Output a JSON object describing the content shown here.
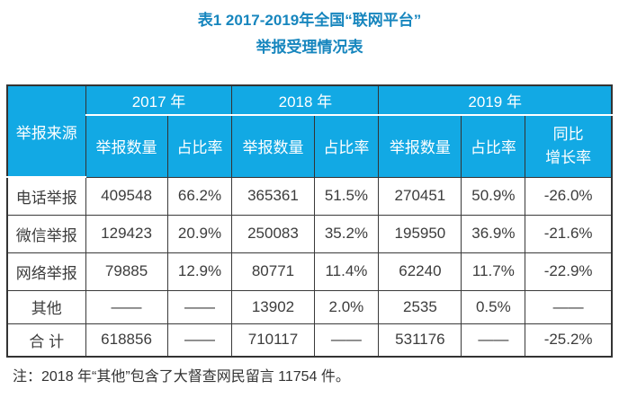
{
  "title": {
    "line1": "表1 2017-2019年全国“联网平台”",
    "line2": "举报受理情况表"
  },
  "colors": {
    "header_bg": "#12a9e4",
    "title_text": "#1786be",
    "header_text": "#ffffff",
    "body_text": "#3c3c3c",
    "border": "#333333",
    "header_separator": "#ffffff"
  },
  "table": {
    "corner_header": "举报来源",
    "year_headers": {
      "y2017": "2017 年",
      "y2018": "2018 年",
      "y2019": "2019 年"
    },
    "sub_headers": {
      "count2017": "举报数量",
      "ratio2017": "占比率",
      "count2018": "举报数量",
      "ratio2018": "占比率",
      "count2019": "举报数量",
      "ratio2019": "占比率",
      "yoy_line1": "同比",
      "yoy_line2": "增长率"
    },
    "rows": [
      {
        "label": "电话举报",
        "cells": [
          "409548",
          "66.2%",
          "365361",
          "51.5%",
          "270451",
          "50.9%",
          "-26.0%"
        ]
      },
      {
        "label": "微信举报",
        "cells": [
          "129423",
          "20.9%",
          "250083",
          "35.2%",
          "195950",
          "36.9%",
          "-21.6%"
        ]
      },
      {
        "label": "网络举报",
        "cells": [
          "79885",
          "12.9%",
          "80771",
          "11.4%",
          "62240",
          "11.7%",
          "-22.9%"
        ]
      },
      {
        "label": "其他",
        "cells": [
          "——",
          "——",
          "13902",
          "2.0%",
          "2535",
          "0.5%",
          "——"
        ]
      },
      {
        "label": "合 计",
        "cells": [
          "618856",
          "——",
          "710117",
          "——",
          "531176",
          "——",
          "-25.2%"
        ]
      }
    ]
  },
  "note": "注：2018 年“其他”包含了大督查网民留言 11754 件。"
}
